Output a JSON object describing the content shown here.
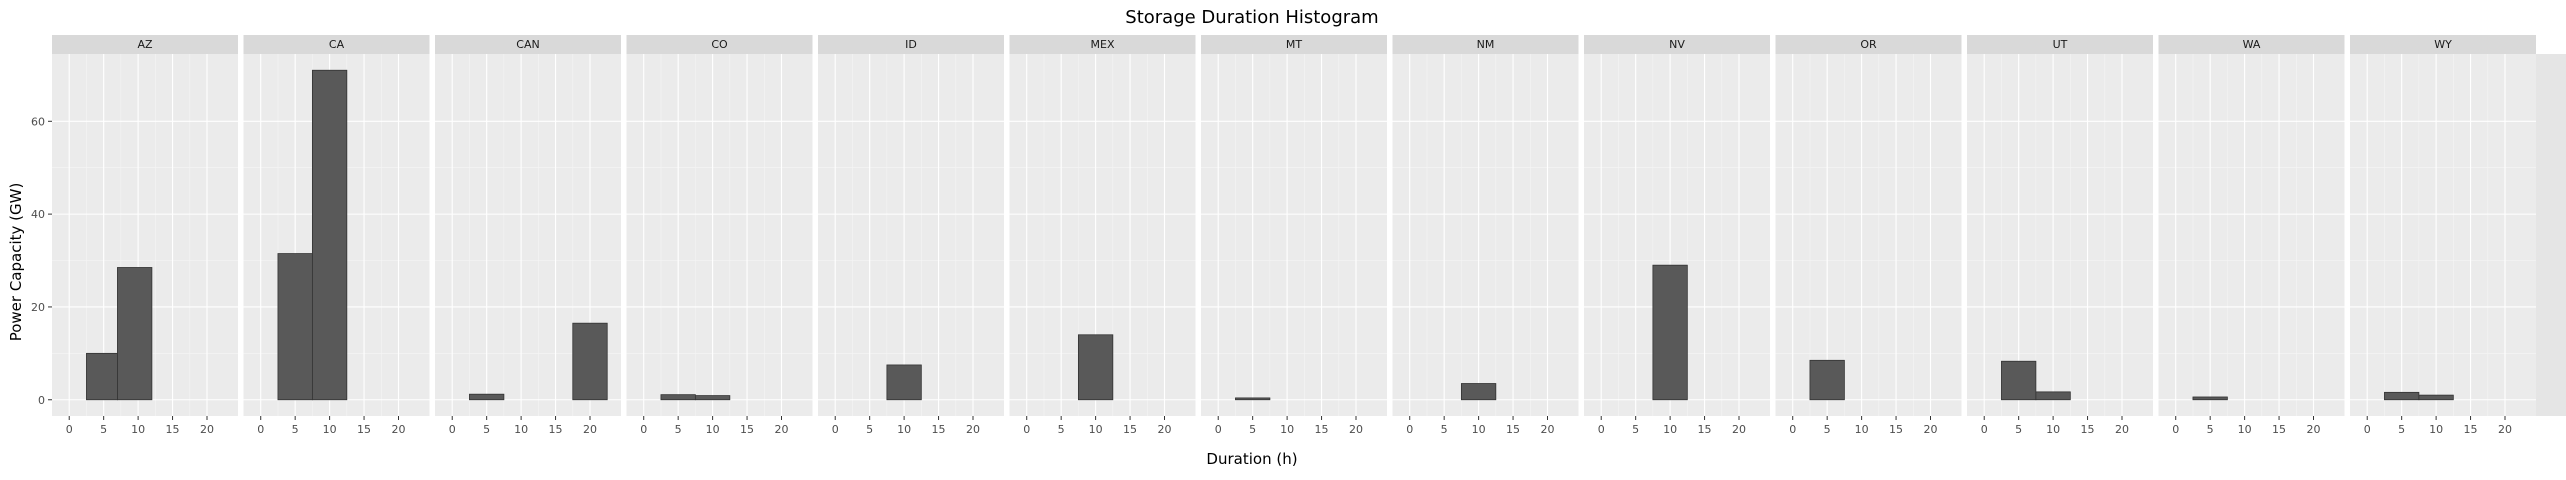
{
  "chart_data": {
    "type": "bar",
    "title": "Storage Duration Histogram",
    "xlabel": "Duration (h)",
    "ylabel": "Power Capacity (GW)",
    "xlim": [
      -2.5,
      24.5
    ],
    "ylim": [
      -3.5,
      74.5
    ],
    "x_ticks": [
      0,
      5,
      10,
      15,
      20
    ],
    "y_ticks": [
      0,
      20,
      40,
      60
    ],
    "bin_width": 4.4,
    "grid": true,
    "legend": "none",
    "facets": [
      {
        "name": "AZ",
        "bins": [
          {
            "x0": 2.5,
            "x1": 7.0,
            "value": 10.0
          },
          {
            "x0": 7.0,
            "x1": 12.0,
            "value": 28.5
          }
        ]
      },
      {
        "name": "CA",
        "bins": [
          {
            "x0": 2.5,
            "x1": 7.5,
            "value": 31.5
          },
          {
            "x0": 7.5,
            "x1": 12.5,
            "value": 71.0
          }
        ]
      },
      {
        "name": "CAN",
        "bins": [
          {
            "x0": 2.5,
            "x1": 7.5,
            "value": 1.2
          },
          {
            "x0": 17.5,
            "x1": 22.5,
            "value": 16.5
          }
        ]
      },
      {
        "name": "CO",
        "bins": [
          {
            "x0": 2.5,
            "x1": 7.5,
            "value": 1.1
          },
          {
            "x0": 7.5,
            "x1": 12.5,
            "value": 0.9
          }
        ]
      },
      {
        "name": "ID",
        "bins": [
          {
            "x0": 7.5,
            "x1": 12.5,
            "value": 7.5
          }
        ]
      },
      {
        "name": "MEX",
        "bins": [
          {
            "x0": 7.5,
            "x1": 12.5,
            "value": 14.0
          }
        ]
      },
      {
        "name": "MT",
        "bins": [
          {
            "x0": 2.5,
            "x1": 7.5,
            "value": 0.4
          }
        ]
      },
      {
        "name": "NM",
        "bins": [
          {
            "x0": 7.5,
            "x1": 12.5,
            "value": 3.5
          }
        ]
      },
      {
        "name": "NV",
        "bins": [
          {
            "x0": 7.5,
            "x1": 12.5,
            "value": 29.0
          }
        ]
      },
      {
        "name": "OR",
        "bins": [
          {
            "x0": 2.5,
            "x1": 7.5,
            "value": 8.5
          }
        ]
      },
      {
        "name": "UT",
        "bins": [
          {
            "x0": 2.5,
            "x1": 7.5,
            "value": 8.3
          },
          {
            "x0": 7.5,
            "x1": 12.5,
            "value": 1.7
          }
        ]
      },
      {
        "name": "WA",
        "bins": [
          {
            "x0": 2.5,
            "x1": 7.5,
            "value": 0.6
          }
        ]
      },
      {
        "name": "WY",
        "bins": [
          {
            "x0": 2.5,
            "x1": 7.5,
            "value": 1.6
          },
          {
            "x0": 7.5,
            "x1": 12.5,
            "value": 1.0
          }
        ]
      }
    ]
  }
}
